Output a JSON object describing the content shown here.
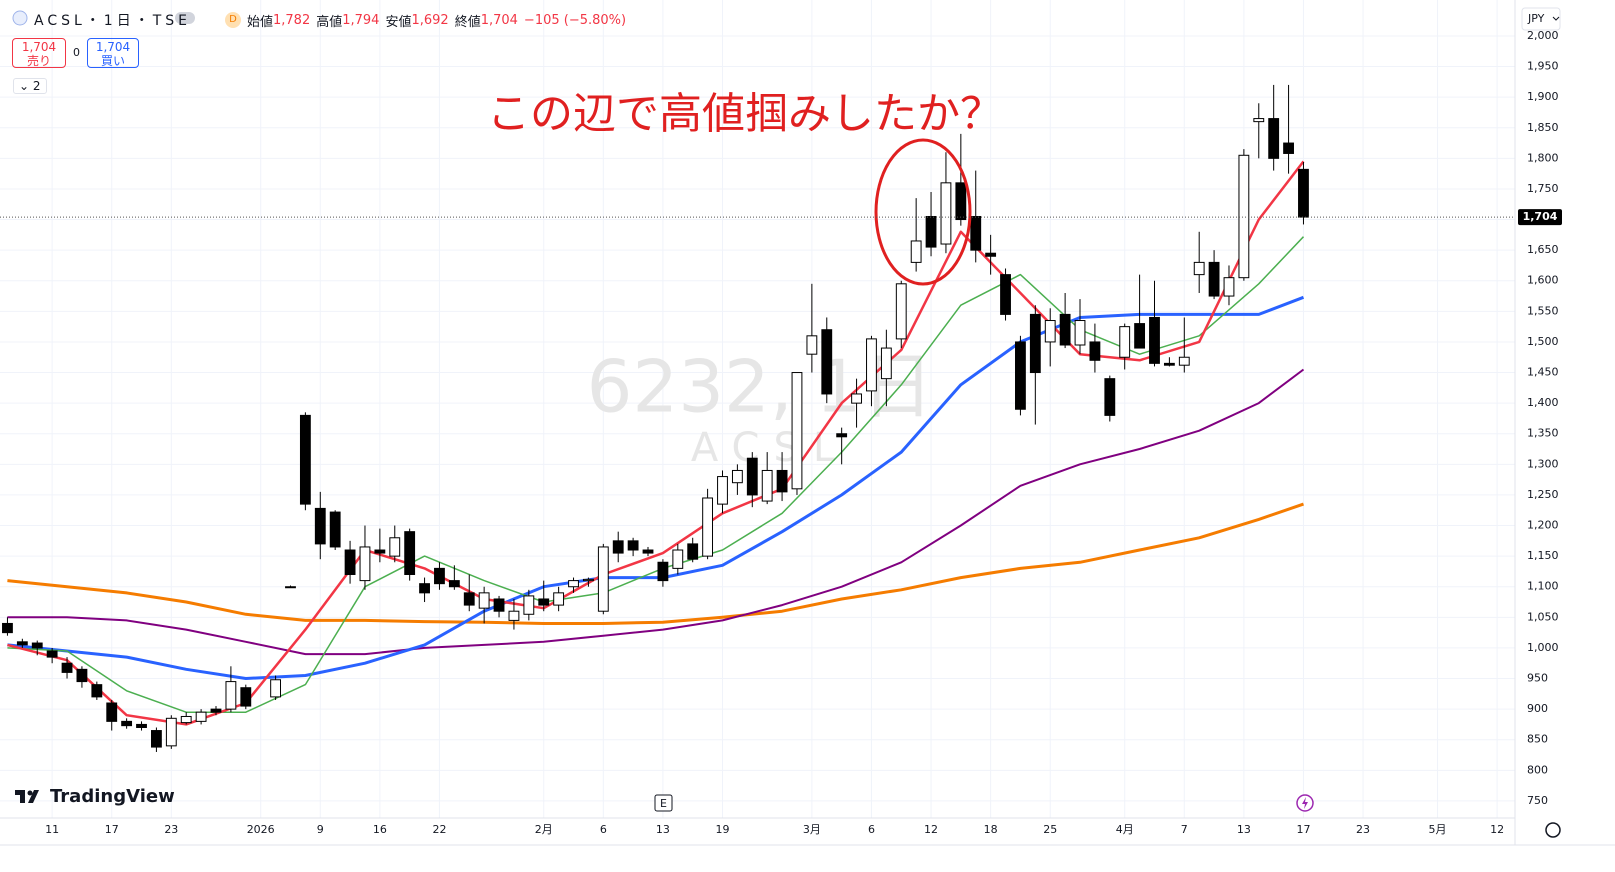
{
  "header": {
    "symbol": "ACSL・1日・TSE",
    "interval_badge": "D",
    "ohlc": [
      {
        "label": "始値",
        "value": "1,782"
      },
      {
        "label": "高値",
        "value": "1,794"
      },
      {
        "label": "安値",
        "value": "1,692"
      },
      {
        "label": "終値",
        "value": "1,704"
      }
    ],
    "change": "−105 (−5.80%)"
  },
  "trade": {
    "sell_price": "1,704",
    "sell_label": "売り",
    "spread": "0",
    "buy_price": "1,704",
    "buy_label": "買い",
    "indicator_count": "2"
  },
  "annotation": "この辺で高値掴みしたか？",
  "watermark": {
    "line1": "6232, 1日",
    "line2": "ACSL"
  },
  "brand": "TradingView",
  "currency": "JPY",
  "event_marker": "E",
  "chart_data": {
    "type": "candlestick",
    "categories": [
      null,
      null,
      null,
      "11",
      null,
      null,
      null,
      "17",
      null,
      null,
      null,
      "23",
      null,
      null,
      null,
      null,
      null,
      "2026",
      null,
      null,
      null,
      "9",
      null,
      null,
      null,
      "16",
      null,
      null,
      null,
      "22",
      null,
      null,
      null,
      null,
      null,
      null,
      "2月",
      null,
      null,
      null,
      "6",
      null,
      null,
      null,
      "13",
      null,
      null,
      null,
      "19",
      null,
      null,
      null,
      null,
      null,
      "3月",
      null,
      null,
      null,
      "6",
      null,
      null,
      null,
      "12",
      null,
      null,
      null,
      "18",
      null,
      null,
      null,
      "25",
      null,
      null,
      null,
      null,
      "4月",
      null,
      null,
      null,
      "7",
      null,
      null,
      null,
      "13",
      null,
      null,
      null,
      "17",
      null,
      null,
      null,
      "23",
      null,
      null,
      null,
      null,
      "5月",
      null,
      null,
      null,
      "12"
    ],
    "open": [
      1040,
      1010,
      1008,
      995,
      975,
      965,
      940,
      910,
      880,
      875,
      865,
      840,
      878,
      880,
      900,
      900,
      935,
      null,
      920,
      1100,
      1380,
      1228,
      1222,
      1160,
      1110,
      1160,
      1150,
      1190,
      1105,
      1130,
      1110,
      1090,
      1065,
      1080,
      1045,
      1055,
      1080,
      1070,
      1100,
      1110,
      1060,
      1175,
      1175,
      1160,
      1140,
      1130,
      1170,
      1150,
      1235,
      1270,
      1310,
      1240,
      1290,
      1260,
      1480,
      1520,
      1350,
      1400,
      1420,
      1440,
      1505,
      1630,
      1705,
      1660,
      1760,
      1705,
      1645,
      1610,
      1500,
      1545,
      1500,
      1545,
      1495,
      1500,
      1440,
      1475,
      1530,
      1540,
      1465,
      1462,
      1610,
      1630,
      1575,
      1605,
      1860,
      1865,
      1825,
      1782,
      null,
      null,
      null,
      null,
      null,
      null,
      null,
      null,
      null,
      null,
      null,
      null,
      null
    ],
    "high": [
      1050,
      1015,
      1012,
      1000,
      985,
      970,
      945,
      915,
      885,
      880,
      870,
      890,
      895,
      900,
      905,
      970,
      940,
      null,
      955,
      1102,
      1385,
      1255,
      1225,
      1175,
      1200,
      1195,
      1200,
      1195,
      1115,
      1140,
      1135,
      1120,
      1100,
      1085,
      1080,
      1095,
      1110,
      1100,
      1115,
      1115,
      1170,
      1190,
      1180,
      1165,
      1145,
      1170,
      1180,
      1260,
      1290,
      1300,
      1320,
      1320,
      1320,
      1450,
      1595,
      1540,
      1360,
      1440,
      1510,
      1520,
      1600,
      1735,
      1745,
      1810,
      1840,
      1780,
      1675,
      1620,
      1510,
      1560,
      1555,
      1580,
      1570,
      1530,
      1445,
      1530,
      1610,
      1600,
      1475,
      1540,
      1680,
      1650,
      1625,
      1815,
      1890,
      1920,
      1920,
      1794,
      null,
      null,
      null,
      null,
      null,
      null,
      null,
      null,
      null,
      null,
      null,
      null,
      null
    ],
    "low": [
      1020,
      1000,
      988,
      975,
      950,
      935,
      915,
      865,
      868,
      865,
      830,
      835,
      875,
      875,
      890,
      895,
      900,
      null,
      915,
      1098,
      1225,
      1145,
      1160,
      1105,
      1095,
      1140,
      1140,
      1110,
      1075,
      1095,
      1095,
      1060,
      1040,
      1050,
      1030,
      1045,
      1060,
      1060,
      1090,
      1100,
      1055,
      1140,
      1150,
      1150,
      1100,
      1120,
      1140,
      1145,
      1220,
      1250,
      1230,
      1235,
      1240,
      1250,
      1450,
      1400,
      1300,
      1360,
      1395,
      1395,
      1490,
      1615,
      1640,
      1645,
      1690,
      1630,
      1610,
      1535,
      1380,
      1365,
      1460,
      1490,
      1480,
      1450,
      1370,
      1455,
      1490,
      1460,
      1460,
      1450,
      1580,
      1570,
      1560,
      1600,
      1800,
      1780,
      1775,
      1692,
      null,
      null,
      null,
      null,
      null,
      null,
      null,
      null,
      null,
      null,
      null,
      null,
      null
    ],
    "close": [
      1025,
      1005,
      1000,
      985,
      960,
      945,
      920,
      880,
      873,
      870,
      838,
      885,
      888,
      895,
      895,
      945,
      905,
      null,
      948,
      1100,
      1235,
      1170,
      1165,
      1120,
      1165,
      1155,
      1180,
      1120,
      1090,
      1105,
      1100,
      1070,
      1090,
      1060,
      1060,
      1085,
      1070,
      1090,
      1110,
      1112,
      1165,
      1155,
      1160,
      1155,
      1110,
      1160,
      1145,
      1245,
      1280,
      1290,
      1250,
      1290,
      1255,
      1450,
      1510,
      1415,
      1345,
      1415,
      1505,
      1490,
      1595,
      1665,
      1655,
      1760,
      1700,
      1650,
      1640,
      1545,
      1390,
      1450,
      1535,
      1495,
      1535,
      1470,
      1380,
      1525,
      1490,
      1465,
      1462,
      1475,
      1630,
      1575,
      1605,
      1805,
      1865,
      1800,
      1808,
      1704,
      null,
      null,
      null,
      null,
      null,
      null,
      null,
      null,
      null,
      null,
      null,
      null,
      null
    ],
    "up_color": "#ffffff",
    "down_color": "#000000",
    "moving_averages": [
      {
        "color": "#f57c00",
        "width": 3,
        "x": [
          0,
          4,
          8,
          12,
          16,
          20,
          24,
          28,
          32,
          36,
          40,
          44,
          48,
          52,
          56,
          60,
          64,
          68,
          72,
          76,
          80,
          84,
          87
        ],
        "values": [
          1110,
          1100,
          1090,
          1075,
          1055,
          1045,
          1045,
          1043,
          1042,
          1040,
          1040,
          1042,
          1050,
          1060,
          1080,
          1095,
          1115,
          1130,
          1140,
          1160,
          1180,
          1210,
          1235
        ]
      },
      {
        "color": "#800080",
        "width": 2,
        "x": [
          0,
          4,
          8,
          12,
          16,
          20,
          24,
          28,
          32,
          36,
          40,
          44,
          48,
          52,
          56,
          60,
          64,
          68,
          72,
          76,
          80,
          84,
          87
        ],
        "values": [
          1050,
          1050,
          1045,
          1030,
          1010,
          990,
          990,
          1000,
          1005,
          1010,
          1020,
          1030,
          1045,
          1070,
          1100,
          1140,
          1200,
          1265,
          1300,
          1325,
          1355,
          1400,
          1455
        ]
      },
      {
        "color": "#2962ff",
        "width": 3,
        "x": [
          0,
          4,
          8,
          12,
          16,
          20,
          24,
          28,
          32,
          36,
          40,
          44,
          48,
          52,
          56,
          60,
          64,
          68,
          72,
          76,
          80,
          84,
          87
        ],
        "values": [
          1005,
          995,
          985,
          965,
          950,
          955,
          975,
          1005,
          1060,
          1100,
          1115,
          1115,
          1135,
          1190,
          1250,
          1320,
          1430,
          1500,
          1540,
          1545,
          1545,
          1545,
          1573
        ]
      },
      {
        "color": "#4caf50",
        "width": 1.5,
        "x": [
          0,
          4,
          8,
          12,
          16,
          20,
          24,
          28,
          32,
          36,
          40,
          44,
          48,
          52,
          56,
          60,
          64,
          68,
          72,
          76,
          80,
          84,
          87
        ],
        "values": [
          1000,
          995,
          930,
          895,
          895,
          940,
          1100,
          1150,
          1110,
          1075,
          1090,
          1130,
          1160,
          1220,
          1320,
          1430,
          1560,
          1610,
          1520,
          1480,
          1510,
          1595,
          1672
        ]
      },
      {
        "color": "#f23645",
        "width": 2.5,
        "x": [
          0,
          4,
          8,
          12,
          16,
          20,
          24,
          28,
          32,
          36,
          40,
          44,
          48,
          52,
          56,
          60,
          64,
          68,
          72,
          76,
          80,
          84,
          87
        ],
        "values": [
          1005,
          980,
          890,
          875,
          910,
          1030,
          1160,
          1130,
          1080,
          1065,
          1120,
          1155,
          1220,
          1260,
          1400,
          1487,
          1680,
          1580,
          1480,
          1470,
          1500,
          1700,
          1795
        ]
      }
    ],
    "last_price": {
      "value": 1704,
      "label": "1,704"
    },
    "xlim": [
      -0.5,
      101.2
    ],
    "ylim": [
      727,
      2013
    ],
    "yticks": [
      750,
      800,
      850,
      900,
      950,
      {
        "value": 1000,
        "label": "1,000"
      },
      {
        "value": 1050,
        "label": "1,050"
      },
      {
        "value": 1100,
        "label": "1,100"
      },
      {
        "value": 1150,
        "label": "1,150"
      },
      {
        "value": 1200,
        "label": "1,200"
      },
      {
        "value": 1250,
        "label": "1,250"
      },
      {
        "value": 1300,
        "label": "1,300"
      },
      {
        "value": 1350,
        "label": "1,350"
      },
      {
        "value": 1400,
        "label": "1,400"
      },
      {
        "value": 1450,
        "label": "1,450"
      },
      {
        "value": 1500,
        "label": "1,500"
      },
      {
        "value": 1550,
        "label": "1,550"
      },
      {
        "value": 1600,
        "label": "1,600"
      },
      {
        "value": 1650,
        "label": "1,650"
      },
      {
        "value": 1700,
        "label": "1,700"
      },
      {
        "value": 1750,
        "label": "1,750"
      },
      {
        "value": 1800,
        "label": "1,800"
      },
      {
        "value": 1850,
        "label": "1,850"
      },
      {
        "value": 1900,
        "label": "1,900"
      },
      {
        "value": 1950,
        "label": "1,950"
      },
      {
        "value": 2000,
        "label": "2,000"
      }
    ],
    "grid": true
  }
}
